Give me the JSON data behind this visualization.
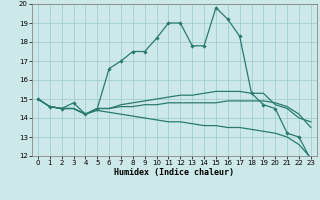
{
  "xlabel": "Humidex (Indice chaleur)",
  "xlim": [
    -0.5,
    23.5
  ],
  "ylim": [
    12,
    20
  ],
  "yticks": [
    12,
    13,
    14,
    15,
    16,
    17,
    18,
    19,
    20
  ],
  "xticks": [
    0,
    1,
    2,
    3,
    4,
    5,
    6,
    7,
    8,
    9,
    10,
    11,
    12,
    13,
    14,
    15,
    16,
    17,
    18,
    19,
    20,
    21,
    22,
    23
  ],
  "bg_color": "#cce8e8",
  "grid_color": "#9dc9c9",
  "line_color": "#2a7a70",
  "lines": [
    [
      15.0,
      14.6,
      14.5,
      14.8,
      14.2,
      14.5,
      16.6,
      17.0,
      17.5,
      17.5,
      18.2,
      19.0,
      19.0,
      17.8,
      17.8,
      19.8,
      19.2,
      18.3,
      15.3,
      14.7,
      14.5,
      13.2,
      13.0,
      11.8
    ],
    [
      15.0,
      14.6,
      14.5,
      14.5,
      14.2,
      14.5,
      14.5,
      14.7,
      14.8,
      14.9,
      15.0,
      15.1,
      15.2,
      15.2,
      15.3,
      15.4,
      15.4,
      15.4,
      15.3,
      15.3,
      14.7,
      14.5,
      14.0,
      13.8
    ],
    [
      15.0,
      14.6,
      14.5,
      14.5,
      14.2,
      14.5,
      14.5,
      14.6,
      14.6,
      14.7,
      14.7,
      14.8,
      14.8,
      14.8,
      14.8,
      14.8,
      14.9,
      14.9,
      14.9,
      14.9,
      14.8,
      14.6,
      14.2,
      13.5
    ],
    [
      15.0,
      14.6,
      14.5,
      14.5,
      14.2,
      14.4,
      14.3,
      14.2,
      14.1,
      14.0,
      13.9,
      13.8,
      13.8,
      13.7,
      13.6,
      13.6,
      13.5,
      13.5,
      13.4,
      13.3,
      13.2,
      13.0,
      12.6,
      11.9
    ]
  ],
  "has_markers": [
    true,
    false,
    false,
    false
  ]
}
